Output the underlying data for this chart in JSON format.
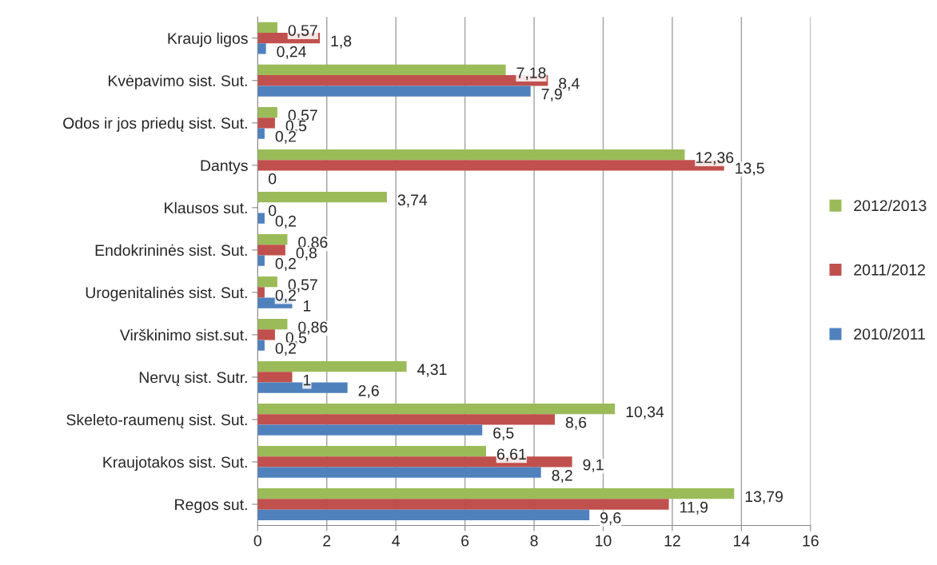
{
  "chart_data": {
    "type": "bar",
    "orientation": "horizontal",
    "categories": [
      "Kraujo ligos",
      "Kvėpavimo sist. Sut.",
      "Odos ir jos priedų sist. Sut.",
      "Dantys",
      "Klausos sut.",
      "Endokrininės sist. Sut.",
      "Urogenitalinės sist. Sut.",
      "Virškinimo sist.sut.",
      "Nervų sist. Sutr.",
      "Skeleto-raumenų sist. Sut.",
      "Kraujotakos sist. Sut.",
      "Regos sut."
    ],
    "series": [
      {
        "name": "2012/2013",
        "color": "#9bbb59",
        "values": [
          0.57,
          7.18,
          0.57,
          12.36,
          3.74,
          0.86,
          0.57,
          0.86,
          4.31,
          10.34,
          6.61,
          13.79
        ],
        "value_labels": [
          "0,57",
          "7,18",
          "0,57",
          "12,36",
          "3,74",
          "0,86",
          "0,57",
          "0,86",
          "4,31",
          "10,34",
          "6,61",
          "13,79"
        ]
      },
      {
        "name": "2011/2012",
        "color": "#c0504d",
        "values": [
          1.8,
          8.4,
          0.5,
          13.5,
          0,
          0.8,
          0.2,
          0.5,
          1,
          8.6,
          9.1,
          11.9
        ],
        "value_labels": [
          "1,8",
          "8,4",
          "0,5",
          "13,5",
          "0",
          "0,8",
          "0,2",
          "0,5",
          "1",
          "8,6",
          "9,1",
          "11,9"
        ]
      },
      {
        "name": "2010/2011",
        "color": "#4f81bd",
        "values": [
          0.24,
          7.9,
          0.2,
          0,
          0.2,
          0.2,
          1,
          0.2,
          2.6,
          6.5,
          8.2,
          9.6
        ],
        "value_labels": [
          "0,24",
          "7,9",
          "0,2",
          "0",
          "0,2",
          "0,2",
          "1",
          "0,2",
          "2,6",
          "6,5",
          "8,2",
          "9,6"
        ]
      }
    ],
    "xlim": [
      0,
      16
    ],
    "xticks": [
      0,
      2,
      4,
      6,
      8,
      10,
      12,
      14,
      16
    ],
    "grid": "x",
    "legend": "right"
  }
}
